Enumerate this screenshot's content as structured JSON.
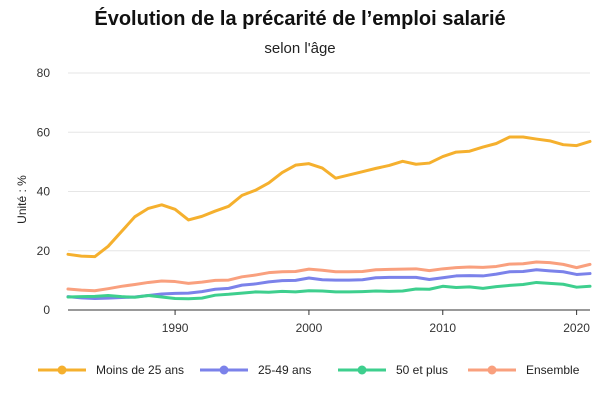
{
  "title": "Évolution de la précarité de l’emploi salarié",
  "subtitle": "selon l'âge",
  "chart_data": {
    "type": "line",
    "title": "Évolution de la précarité de l’emploi salarié",
    "subtitle": "selon l'âge",
    "xlabel": "",
    "ylabel": "Unité : %",
    "xlim": [
      1982,
      2021
    ],
    "ylim": [
      0,
      80
    ],
    "xticks": [
      1990,
      2000,
      2010,
      2020
    ],
    "yticks": [
      0,
      20,
      40,
      60,
      80
    ],
    "grid": "horizontal",
    "legend": "bottom",
    "x": [
      1982,
      1983,
      1984,
      1985,
      1986,
      1987,
      1988,
      1989,
      1990,
      1991,
      1992,
      1993,
      1994,
      1995,
      1996,
      1997,
      1998,
      1999,
      2000,
      2001,
      2002,
      2003,
      2004,
      2005,
      2006,
      2007,
      2008,
      2009,
      2010,
      2011,
      2012,
      2013,
      2014,
      2015,
      2016,
      2017,
      2018,
      2019,
      2020,
      2021
    ],
    "series": [
      {
        "name": "Moins de 25 ans",
        "color": "#f5b02e",
        "values": [
          18.8,
          18.2,
          18.0,
          21.5,
          26.5,
          31.5,
          34.3,
          35.5,
          34.0,
          30.4,
          31.6,
          33.4,
          35.0,
          38.7,
          40.4,
          42.9,
          46.4,
          48.9,
          49.4,
          47.9,
          44.5,
          45.6,
          46.7,
          47.8,
          48.8,
          50.2,
          49.2,
          49.6,
          51.8,
          53.3,
          53.6,
          55.0,
          56.2,
          58.4,
          58.4,
          57.7,
          57.1,
          55.8,
          55.5,
          56.9
        ]
      },
      {
        "name": "25-49 ans",
        "color": "#7b82ea",
        "values": [
          4.5,
          4.1,
          3.9,
          4.0,
          4.2,
          4.4,
          4.9,
          5.4,
          5.6,
          5.7,
          6.2,
          7.0,
          7.3,
          8.4,
          8.8,
          9.5,
          9.9,
          10.0,
          10.8,
          10.2,
          10.1,
          10.1,
          10.2,
          10.9,
          11.0,
          11.0,
          11.0,
          10.3,
          10.9,
          11.5,
          11.6,
          11.5,
          12.1,
          12.9,
          13.0,
          13.6,
          13.2,
          12.9,
          12.0,
          12.3
        ]
      },
      {
        "name": "50 et plus",
        "color": "#3ecf8e",
        "values": [
          4.4,
          4.5,
          4.6,
          4.9,
          4.5,
          4.3,
          4.9,
          4.4,
          3.9,
          3.8,
          4.0,
          5.0,
          5.3,
          5.7,
          6.1,
          6.0,
          6.3,
          6.1,
          6.5,
          6.4,
          6.1,
          6.1,
          6.2,
          6.4,
          6.3,
          6.4,
          7.1,
          7.0,
          8.0,
          7.6,
          7.8,
          7.3,
          7.9,
          8.3,
          8.6,
          9.3,
          9.0,
          8.7,
          7.7,
          8.0
        ]
      },
      {
        "name": "Ensemble",
        "color": "#f9a07e",
        "values": [
          7.1,
          6.7,
          6.5,
          7.2,
          8.0,
          8.6,
          9.3,
          9.8,
          9.6,
          9.0,
          9.4,
          10.0,
          10.1,
          11.2,
          11.8,
          12.6,
          12.9,
          13.0,
          13.8,
          13.4,
          12.9,
          12.9,
          13.0,
          13.6,
          13.7,
          13.8,
          13.9,
          13.3,
          13.9,
          14.3,
          14.5,
          14.4,
          14.7,
          15.5,
          15.6,
          16.2,
          16.0,
          15.4,
          14.3,
          15.4
        ]
      }
    ]
  }
}
